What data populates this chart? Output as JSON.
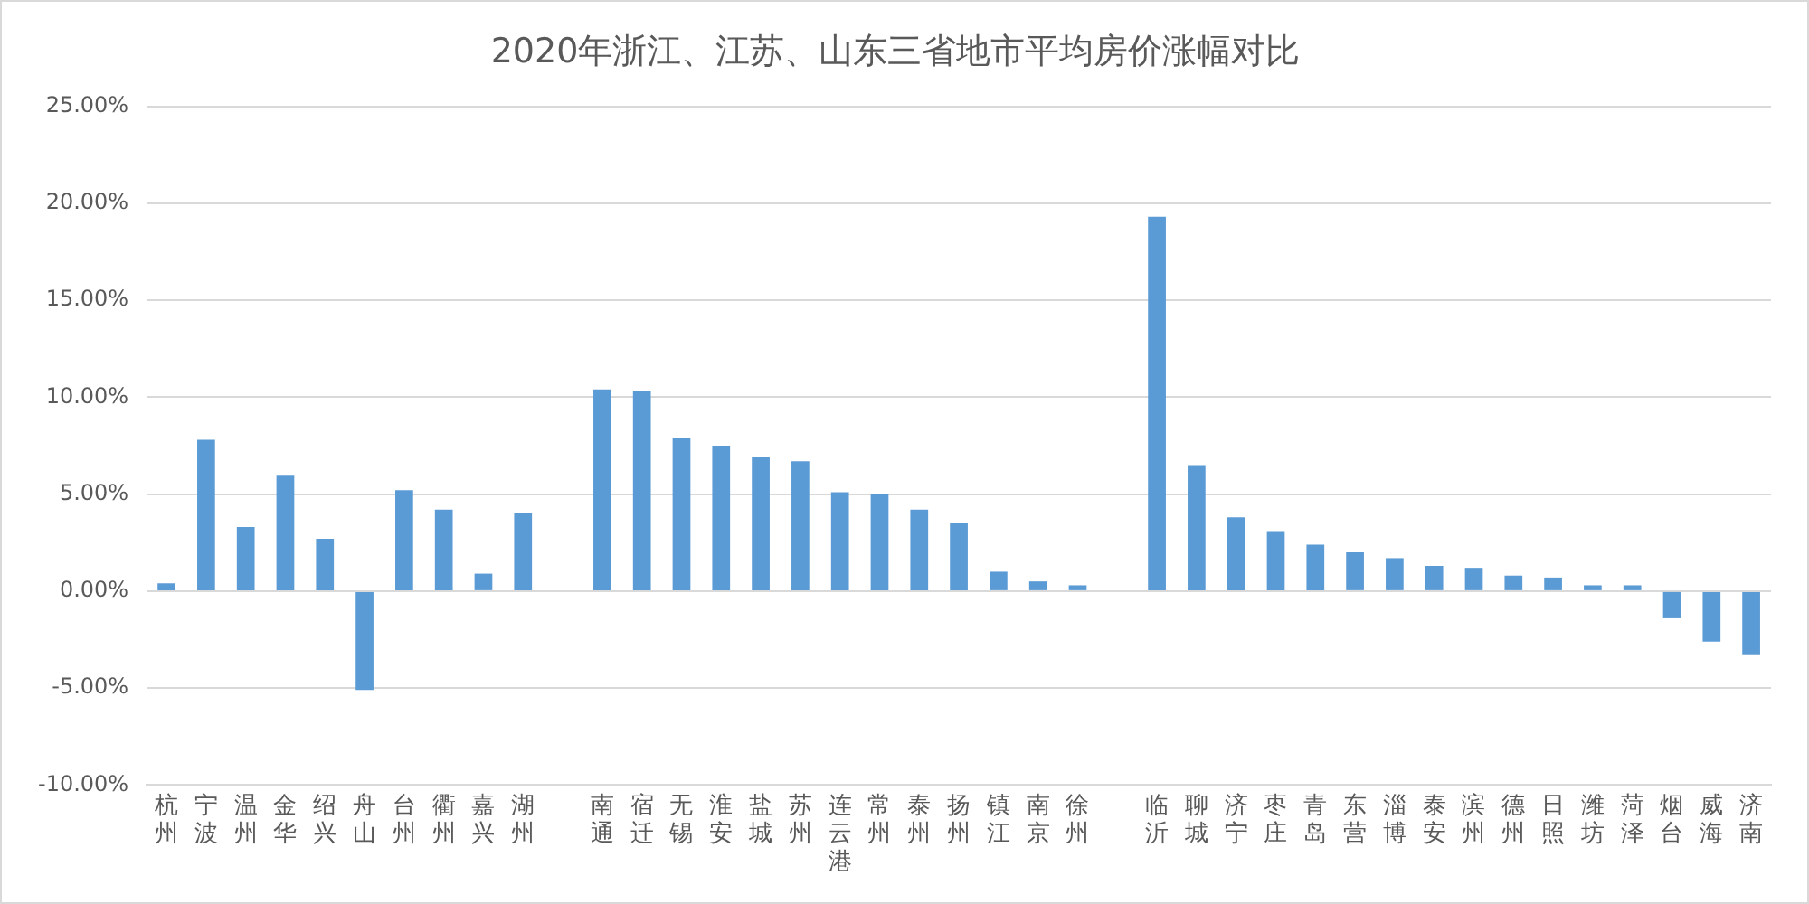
{
  "chart_data": {
    "type": "bar",
    "title": "2020年浙江、江苏、山东三省地市平均房价涨幅对比",
    "categories": [
      "杭州",
      "宁波",
      "温州",
      "金华",
      "绍兴",
      "舟山",
      "台州",
      "衢州",
      "嘉兴",
      "湖州",
      null,
      "南通",
      "宿迁",
      "无锡",
      "淮安",
      "盐城",
      "苏州",
      "连云港",
      "常州",
      "泰州",
      "扬州",
      "镇江",
      "南京",
      "徐州",
      null,
      "临沂",
      "聊城",
      "济宁",
      "枣庄",
      "青岛",
      "东营",
      "淄博",
      "泰安",
      "滨州",
      "德州",
      "日照",
      "潍坊",
      "菏泽",
      "烟台",
      "威海",
      "济南"
    ],
    "values": [
      0.4,
      7.8,
      3.3,
      6.0,
      2.7,
      -5.1,
      5.2,
      4.2,
      0.9,
      4.0,
      null,
      10.4,
      10.3,
      7.9,
      7.5,
      6.9,
      6.7,
      5.1,
      5.0,
      4.2,
      3.5,
      1.0,
      0.5,
      0.3,
      null,
      19.3,
      6.5,
      3.8,
      3.1,
      2.4,
      2.0,
      1.7,
      1.3,
      1.2,
      0.8,
      0.7,
      0.3,
      0.3,
      -1.4,
      -2.6,
      -3.3
    ],
    "color": "#5b9bd5",
    "ylim": [
      -10,
      25
    ],
    "yticks": [
      {
        "value": -10,
        "label": "-10.00%"
      },
      {
        "value": -5,
        "label": "-5.00%"
      },
      {
        "value": 0,
        "label": "0.00%"
      },
      {
        "value": 5,
        "label": "5.00%"
      },
      {
        "value": 10,
        "label": "10.00%"
      },
      {
        "value": 15,
        "label": "15.00%"
      },
      {
        "value": 20,
        "label": "20.00%"
      },
      {
        "value": 25,
        "label": "25.00%"
      }
    ],
    "grid": "y",
    "legend": false
  }
}
